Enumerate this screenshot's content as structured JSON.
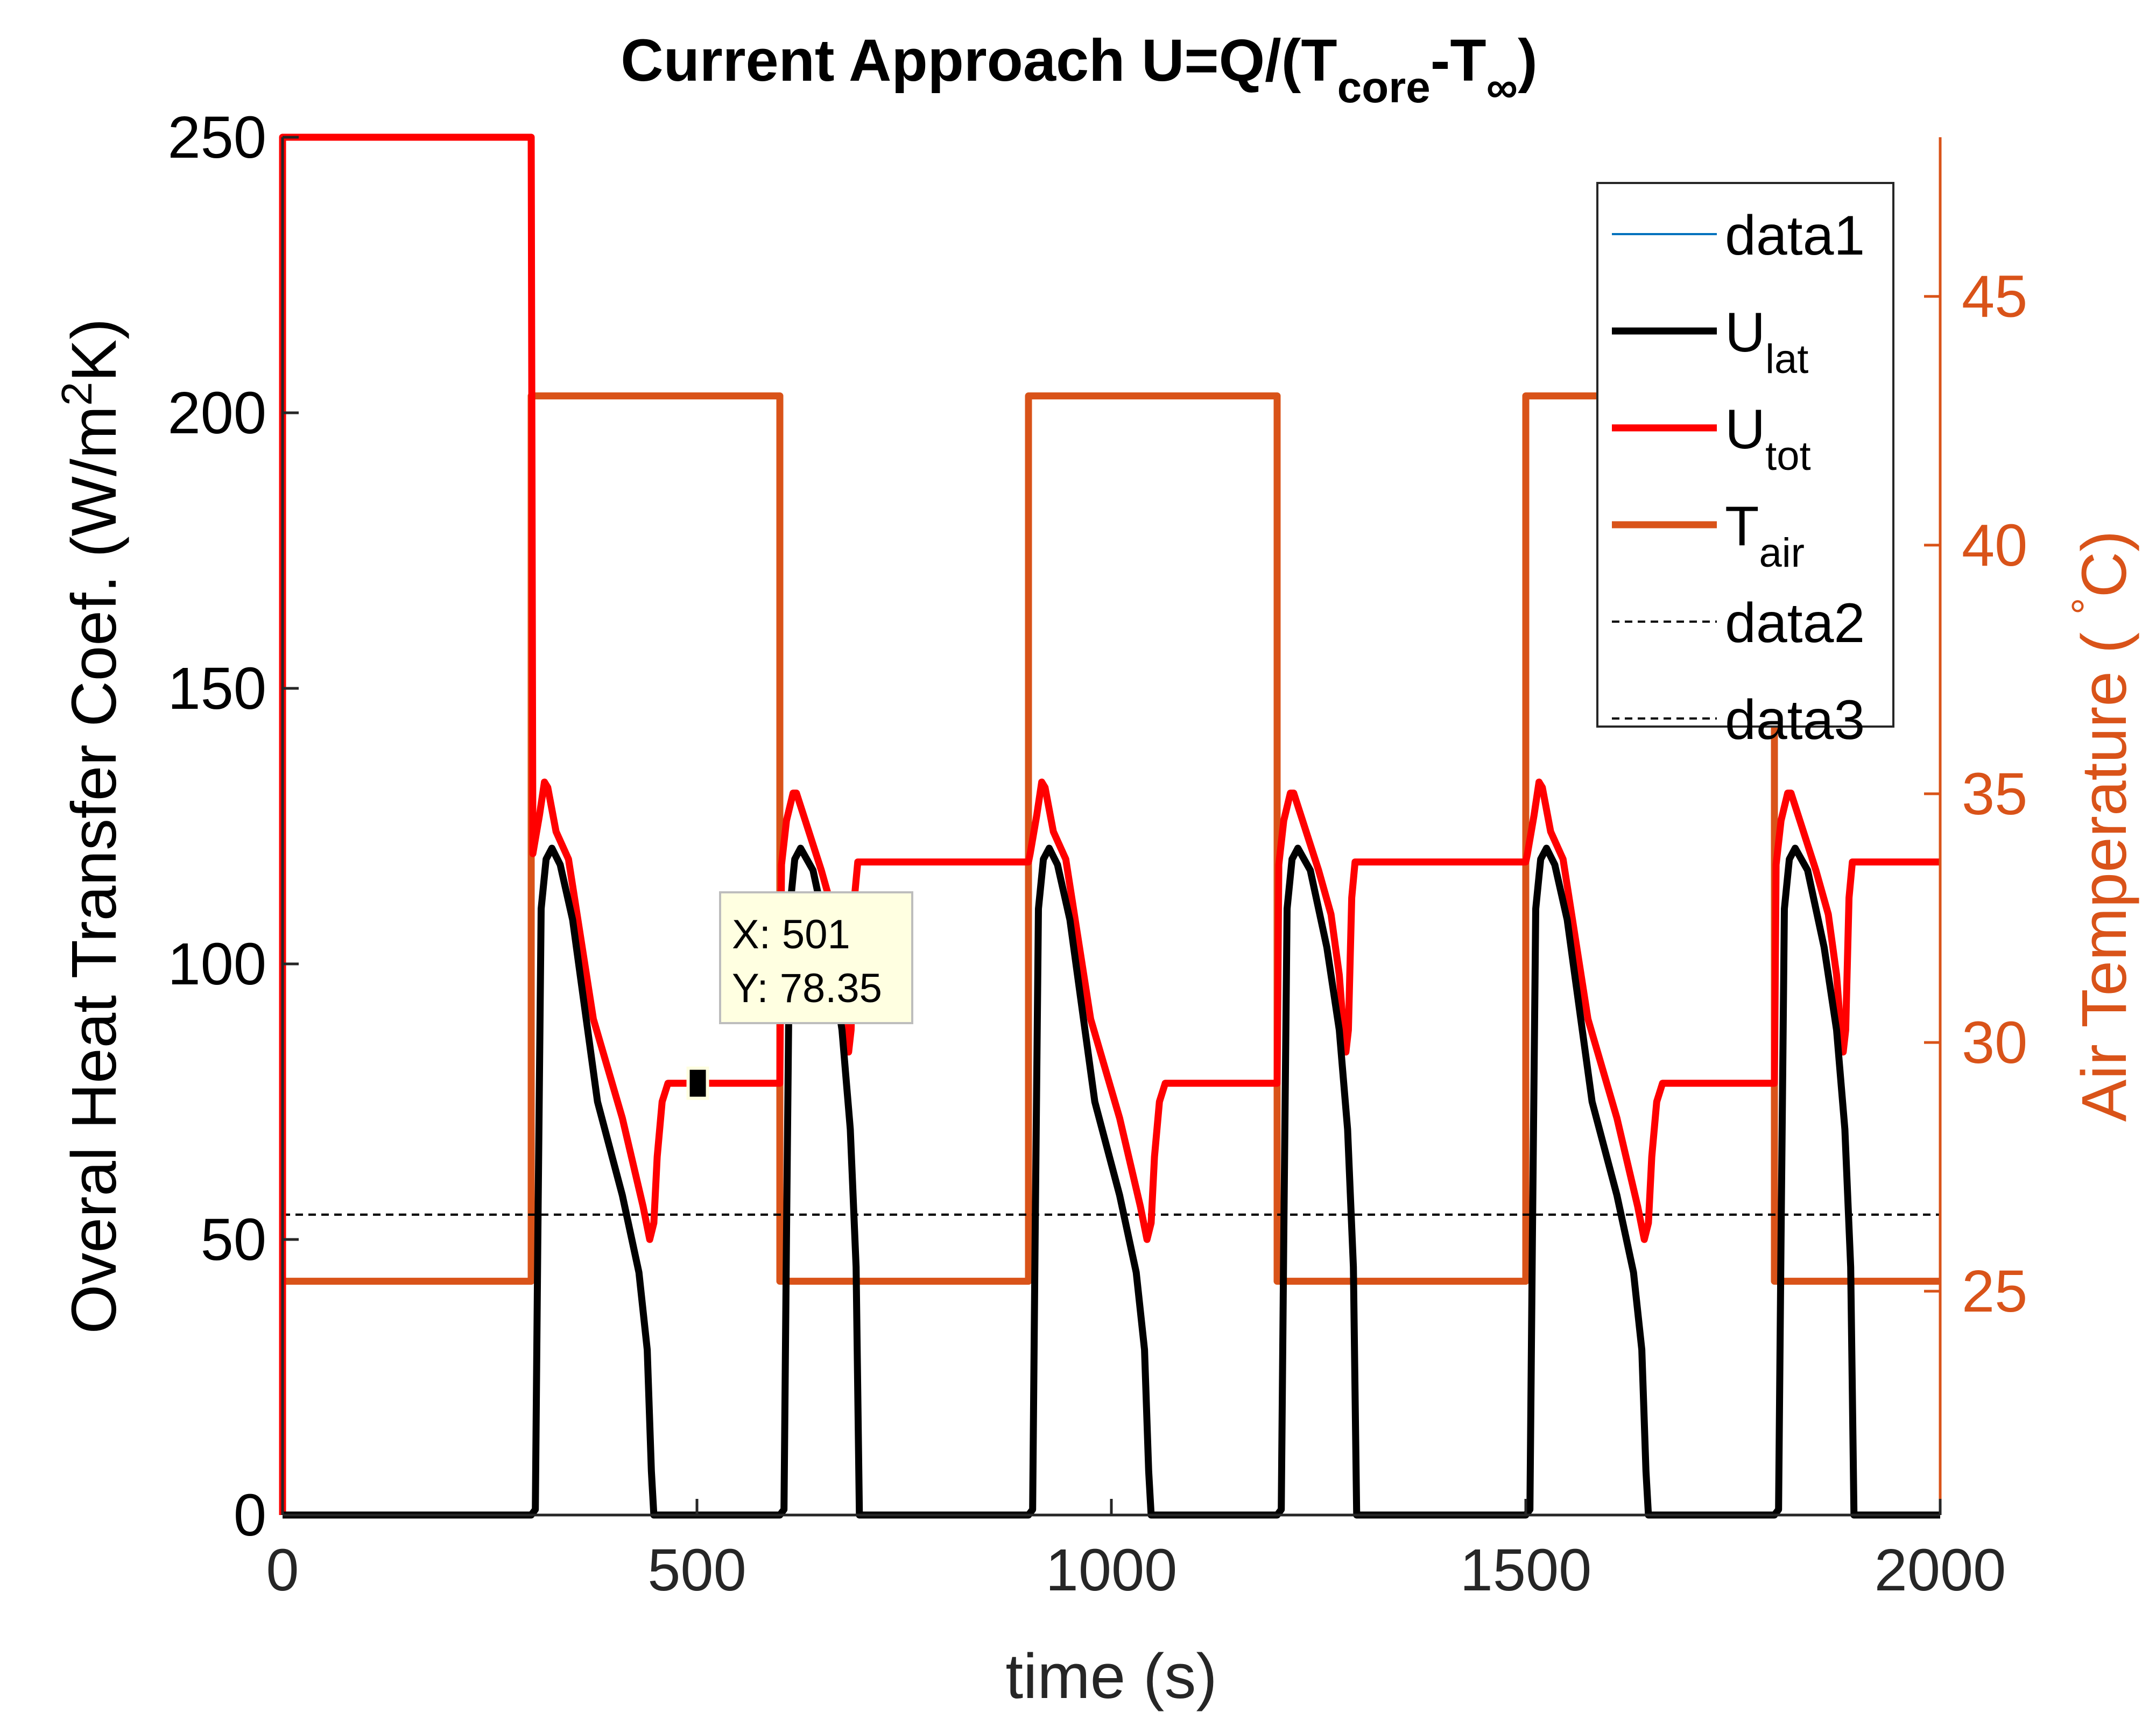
{
  "chart_data": {
    "type": "line",
    "title": {
      "main": "Current Approach U=Q/(T",
      "sub1": "core",
      "mid": "-T",
      "sub2": "∞",
      "end": ")"
    },
    "xlabel": "time (s)",
    "ylabel": {
      "left_pre": "Overal Heat Transfer Coef. (W/m",
      "left_sup": "2",
      "left_post": "K)"
    },
    "y2label": {
      "pre": "Air Temperature ( ",
      "sup": "°",
      "post": "C)"
    },
    "xlim": [
      0,
      2000
    ],
    "ylim": [
      0,
      250
    ],
    "y2lim": [
      20.5,
      48.2
    ],
    "xticks": [
      "0",
      "500",
      "1000",
      "1500",
      "2000"
    ],
    "yticks": [
      "0",
      "50",
      "100",
      "150",
      "200",
      "250"
    ],
    "y2ticks": [
      "25",
      "30",
      "35",
      "40",
      "45"
    ],
    "legend": {
      "placement": "top-right",
      "entries": [
        {
          "label": "data1",
          "sub": "",
          "color": "#0072BD",
          "style": "thin"
        },
        {
          "label": "U",
          "sub": "lat",
          "color": "#000000",
          "style": "thick"
        },
        {
          "label": "U",
          "sub": "tot",
          "color": "#FF0000",
          "style": "thick"
        },
        {
          "label": "T",
          "sub": "air",
          "color": "#D95319",
          "style": "thick"
        },
        {
          "label": "data2",
          "sub": "",
          "color": "#000000",
          "style": "dashed"
        },
        {
          "label": "data3",
          "sub": "",
          "color": "#000000",
          "style": "dashed"
        }
      ]
    },
    "series": [
      {
        "name": "U_lat",
        "axis": "left",
        "color": "#000000",
        "points": [
          [
            0,
            0
          ],
          [
            300,
            0
          ],
          [
            305,
            1
          ],
          [
            308,
            50
          ],
          [
            312,
            110
          ],
          [
            318,
            119
          ],
          [
            325,
            121
          ],
          [
            335,
            118
          ],
          [
            350,
            108
          ],
          [
            380,
            75
          ],
          [
            410,
            58
          ],
          [
            430,
            44
          ],
          [
            440,
            30
          ],
          [
            445,
            8
          ],
          [
            448,
            0
          ],
          [
            600,
            0
          ],
          [
            605,
            1
          ],
          [
            608,
            50
          ],
          [
            612,
            110
          ],
          [
            618,
            119
          ],
          [
            625,
            121
          ],
          [
            640,
            117
          ],
          [
            660,
            103
          ],
          [
            675,
            88
          ],
          [
            685,
            70
          ],
          [
            692,
            45
          ],
          [
            696,
            0
          ],
          [
            900,
            0
          ],
          [
            905,
            1
          ],
          [
            908,
            50
          ],
          [
            912,
            110
          ],
          [
            918,
            119
          ],
          [
            925,
            121
          ],
          [
            935,
            118
          ],
          [
            950,
            108
          ],
          [
            980,
            75
          ],
          [
            1010,
            58
          ],
          [
            1030,
            44
          ],
          [
            1040,
            30
          ],
          [
            1045,
            8
          ],
          [
            1048,
            0
          ],
          [
            1200,
            0
          ],
          [
            1205,
            1
          ],
          [
            1208,
            50
          ],
          [
            1212,
            110
          ],
          [
            1218,
            119
          ],
          [
            1225,
            121
          ],
          [
            1240,
            117
          ],
          [
            1260,
            103
          ],
          [
            1275,
            88
          ],
          [
            1285,
            70
          ],
          [
            1292,
            45
          ],
          [
            1296,
            0
          ],
          [
            1500,
            0
          ],
          [
            1505,
            1
          ],
          [
            1508,
            50
          ],
          [
            1512,
            110
          ],
          [
            1518,
            119
          ],
          [
            1525,
            121
          ],
          [
            1535,
            118
          ],
          [
            1550,
            108
          ],
          [
            1580,
            75
          ],
          [
            1610,
            58
          ],
          [
            1630,
            44
          ],
          [
            1640,
            30
          ],
          [
            1645,
            8
          ],
          [
            1648,
            0
          ],
          [
            1800,
            0
          ],
          [
            1805,
            1
          ],
          [
            1808,
            50
          ],
          [
            1812,
            110
          ],
          [
            1818,
            119
          ],
          [
            1825,
            121
          ],
          [
            1840,
            117
          ],
          [
            1860,
            103
          ],
          [
            1875,
            88
          ],
          [
            1885,
            70
          ],
          [
            1892,
            45
          ],
          [
            1896,
            0
          ],
          [
            2000,
            0
          ]
        ]
      },
      {
        "name": "U_tot",
        "axis": "left",
        "color": "#FF0000",
        "points": [
          [
            0,
            0
          ],
          [
            0,
            250
          ],
          [
            300,
            250
          ],
          [
            302,
            120
          ],
          [
            310,
            127
          ],
          [
            316,
            133
          ],
          [
            320,
            132
          ],
          [
            330,
            124
          ],
          [
            345,
            119
          ],
          [
            375,
            90
          ],
          [
            410,
            72
          ],
          [
            435,
            56
          ],
          [
            443,
            50
          ],
          [
            448,
            53
          ],
          [
            452,
            65
          ],
          [
            458,
            75
          ],
          [
            465,
            78.35
          ],
          [
            600,
            78.35
          ],
          [
            602,
            118
          ],
          [
            608,
            126
          ],
          [
            616,
            131
          ],
          [
            620,
            131
          ],
          [
            635,
            124
          ],
          [
            650,
            117
          ],
          [
            665,
            109
          ],
          [
            675,
            98
          ],
          [
            680,
            88
          ],
          [
            683,
            84
          ],
          [
            686,
            88
          ],
          [
            690,
            112
          ],
          [
            694,
            118.5
          ],
          [
            900,
            118.5
          ],
          [
            902,
            120
          ],
          [
            910,
            127
          ],
          [
            916,
            133
          ],
          [
            920,
            132
          ],
          [
            930,
            124
          ],
          [
            945,
            119
          ],
          [
            975,
            90
          ],
          [
            1010,
            72
          ],
          [
            1035,
            56
          ],
          [
            1043,
            50
          ],
          [
            1048,
            53
          ],
          [
            1052,
            65
          ],
          [
            1058,
            75
          ],
          [
            1065,
            78.35
          ],
          [
            1200,
            78.35
          ],
          [
            1202,
            118
          ],
          [
            1208,
            126
          ],
          [
            1216,
            131
          ],
          [
            1220,
            131
          ],
          [
            1235,
            124
          ],
          [
            1250,
            117
          ],
          [
            1265,
            109
          ],
          [
            1275,
            98
          ],
          [
            1280,
            88
          ],
          [
            1283,
            84
          ],
          [
            1286,
            88
          ],
          [
            1290,
            112
          ],
          [
            1294,
            118.5
          ],
          [
            1500,
            118.5
          ],
          [
            1502,
            120
          ],
          [
            1510,
            127
          ],
          [
            1516,
            133
          ],
          [
            1520,
            132
          ],
          [
            1530,
            124
          ],
          [
            1545,
            119
          ],
          [
            1575,
            90
          ],
          [
            1610,
            72
          ],
          [
            1635,
            56
          ],
          [
            1643,
            50
          ],
          [
            1648,
            53
          ],
          [
            1652,
            65
          ],
          [
            1658,
            75
          ],
          [
            1665,
            78.35
          ],
          [
            1800,
            78.35
          ],
          [
            1802,
            118
          ],
          [
            1808,
            126
          ],
          [
            1816,
            131
          ],
          [
            1820,
            131
          ],
          [
            1835,
            124
          ],
          [
            1850,
            117
          ],
          [
            1865,
            109
          ],
          [
            1875,
            98
          ],
          [
            1880,
            88
          ],
          [
            1883,
            84
          ],
          [
            1886,
            88
          ],
          [
            1890,
            112
          ],
          [
            1894,
            118.5
          ],
          [
            2000,
            118.5
          ]
        ]
      },
      {
        "name": "T_air",
        "axis": "right",
        "color": "#D95319",
        "points": [
          [
            0,
            25.2
          ],
          [
            300,
            25.2
          ],
          [
            300,
            43
          ],
          [
            600,
            43
          ],
          [
            600,
            25.2
          ],
          [
            900,
            25.2
          ],
          [
            900,
            43
          ],
          [
            1200,
            43
          ],
          [
            1200,
            25.2
          ],
          [
            1500,
            25.2
          ],
          [
            1500,
            43
          ],
          [
            1800,
            43
          ],
          [
            1800,
            25.2
          ],
          [
            2000,
            25.2
          ]
        ]
      },
      {
        "name": "data2",
        "axis": "left",
        "color": "#000000",
        "dashed": true,
        "points": [
          [
            0,
            54.5
          ],
          [
            2000,
            54.5
          ]
        ]
      },
      {
        "name": "data3",
        "axis": "left",
        "color": "#000000",
        "dashed": true,
        "points": [
          [
            0,
            54.5
          ],
          [
            2000,
            54.5
          ]
        ]
      }
    ],
    "datatip": {
      "x": 501,
      "y": 78.35,
      "label_x": "X: 501",
      "label_y": "Y: 78.35"
    }
  }
}
